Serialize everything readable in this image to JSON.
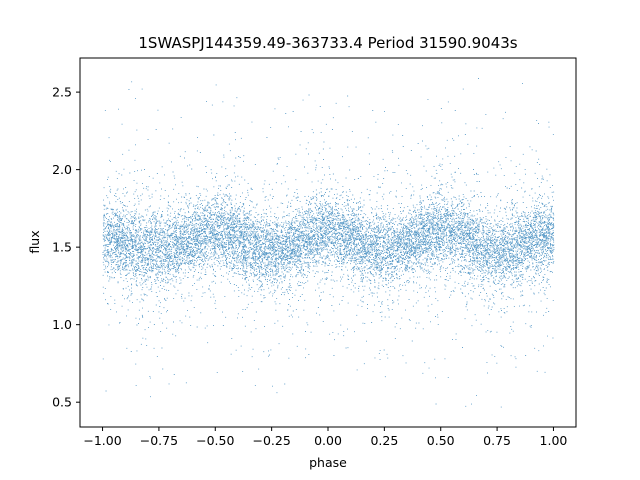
{
  "chart_data": {
    "type": "scatter",
    "title": "1SWASPJ144359.49-363733.4 Period 31590.9043s",
    "xlabel": "phase",
    "ylabel": "flux",
    "xlim": [
      -1.1,
      1.1
    ],
    "ylim": [
      0.34,
      2.72
    ],
    "x_ticks": [
      -1.0,
      -0.75,
      -0.5,
      -0.25,
      0.0,
      0.25,
      0.5,
      0.75,
      1.0
    ],
    "x_tick_labels": [
      "−1.00",
      "−0.75",
      "−0.50",
      "−0.25",
      "0.00",
      "0.25",
      "0.50",
      "0.75",
      "1.00"
    ],
    "y_ticks": [
      0.5,
      1.0,
      1.5,
      2.0,
      2.5
    ],
    "y_tick_labels": [
      "0.5",
      "1.0",
      "1.5",
      "2.0",
      "2.5"
    ],
    "grid": false,
    "marker_color": "#1f77b4",
    "series": [
      {
        "phase_range": [
          -1.0,
          1.0
        ],
        "flux_envelope": {
          "phase": [
            -1.0,
            -0.75,
            -0.5,
            -0.25,
            0.0,
            0.25,
            0.5,
            0.75,
            1.0
          ],
          "median": [
            1.55,
            1.48,
            1.6,
            1.47,
            1.6,
            1.48,
            1.6,
            1.47,
            1.57
          ]
        },
        "flux_min": 0.45,
        "flux_max": 2.6
      }
    ]
  }
}
